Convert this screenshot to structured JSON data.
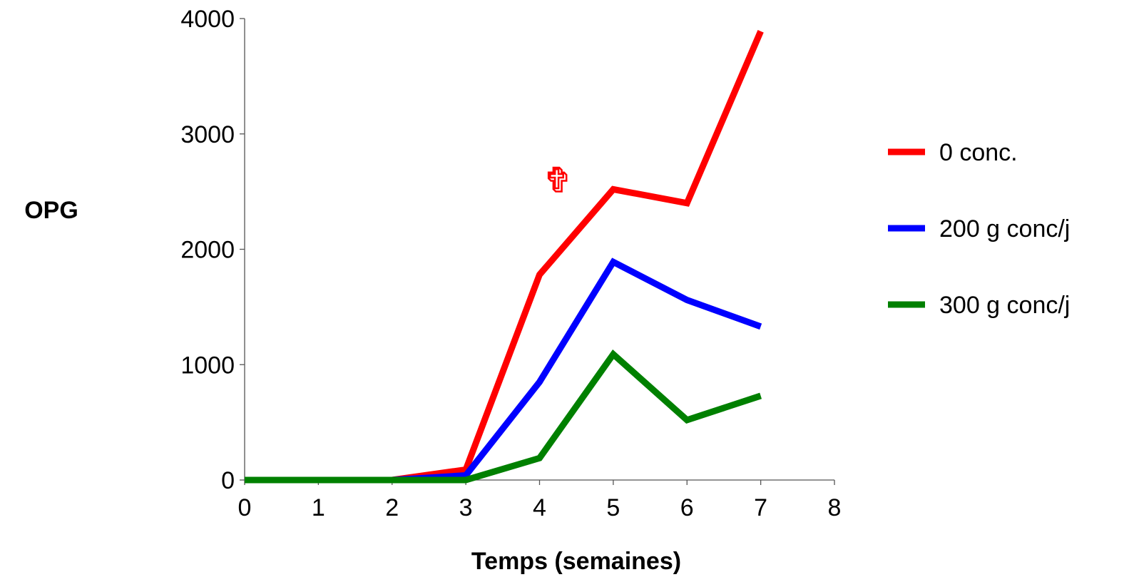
{
  "chart_data": {
    "type": "line",
    "title": "",
    "xlabel": "Temps (semaines)",
    "ylabel": "OPG",
    "xlim": [
      0,
      8
    ],
    "ylim": [
      0,
      4000
    ],
    "x_ticks": [
      0,
      1,
      2,
      3,
      4,
      5,
      6,
      7,
      8
    ],
    "y_ticks": [
      0,
      1000,
      2000,
      3000,
      4000
    ],
    "grid": false,
    "legend_position": "right",
    "x": [
      0,
      1,
      2,
      3,
      4,
      5,
      6,
      7
    ],
    "series": [
      {
        "name": "0 conc.",
        "color": "#ff0000",
        "values": [
          0,
          0,
          0,
          90,
          1780,
          2520,
          2400,
          3890
        ]
      },
      {
        "name": "200 g conc/j",
        "color": "#0000ff",
        "values": [
          0,
          0,
          0,
          40,
          850,
          1890,
          1560,
          1330
        ]
      },
      {
        "name": "300 g conc/j",
        "color": "#008000",
        "values": [
          0,
          0,
          0,
          0,
          190,
          1090,
          520,
          730
        ]
      }
    ],
    "annotations": [
      {
        "text": "✞",
        "x": 4.25,
        "y": 2500,
        "color": "#ff0000",
        "note_series": "0 conc."
      }
    ]
  }
}
